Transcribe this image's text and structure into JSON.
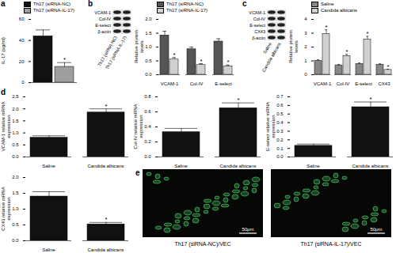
{
  "chart_data": [
    {
      "type": "bar",
      "panel": "a",
      "categories": [
        null
      ],
      "series": [
        {
          "name": "Th17 (siRNA-NC)",
          "color": "#111111",
          "values": [
            44
          ],
          "errors": [
            6
          ],
          "significance": [
            null
          ]
        },
        {
          "name": "Th17 (siRNA-IL-17)",
          "color": "#9e9e9e",
          "values": [
            15
          ],
          "errors": [
            4
          ],
          "significance": [
            "*"
          ]
        }
      ],
      "ylabel": "IL-17 (pg/ml)",
      "ylim": [
        0,
        60
      ],
      "yticks": [
        0,
        20,
        40,
        60
      ],
      "legend": "top-left",
      "tick_labels": "y"
    },
    {
      "type": "bar",
      "panel": "b",
      "categories": [
        "VCAM-1",
        "Col-IV",
        "E-select"
      ],
      "series": [
        {
          "name": "Th17 (siRNA-NC)",
          "color": "#555555",
          "values": [
            1.42,
            0.92,
            1.2
          ],
          "errors": [
            0.15,
            0.08,
            0.1
          ],
          "significance": [
            null,
            null,
            null
          ]
        },
        {
          "name": "Th17 (siRNA-IL-17)",
          "color": "#d0d0d0",
          "values": [
            0.55,
            0.35,
            0.3
          ],
          "errors": [
            0.07,
            0.05,
            0.05
          ],
          "significance": [
            "*",
            "*",
            "*"
          ]
        }
      ],
      "ylabel": "Relative protein levels",
      "ylim": [
        0,
        2
      ],
      "yticks": [
        {
          "value": 0,
          "label": "0.0"
        },
        0.5,
        {
          "value": 1,
          "label": "1.0"
        },
        1.5,
        {
          "value": 2,
          "label": "2.0"
        }
      ],
      "legend": "top-left",
      "blot": {
        "rows": [
          "VCAM-1",
          "Col-IV",
          "E-select",
          "β-actin"
        ],
        "lanes": [
          "Th17 (siRNA-NC)",
          "Th17 (siRNA-IL-17)"
        ]
      }
    },
    {
      "type": "bar",
      "panel": "c",
      "categories": [
        "VCAM-1",
        "Col-IV",
        "E-select",
        "CX43"
      ],
      "series": [
        {
          "name": "Saline",
          "color": "#888888",
          "values": [
            1.0,
            0.68,
            0.78,
            0.72
          ],
          "errors": [
            0.08,
            0.06,
            0.07,
            0.07
          ],
          "significance": [
            null,
            null,
            null,
            null
          ]
        },
        {
          "name": "Candida albicans",
          "color": "#d0d0d0",
          "values": [
            2.95,
            1.35,
            2.55,
            0.35
          ],
          "errors": [
            0.3,
            0.12,
            0.22,
            0.05
          ],
          "significance": [
            "*",
            "*",
            "*",
            "*"
          ]
        }
      ],
      "ylabel": "Relative protein levels",
      "ylim": [
        0,
        4
      ],
      "yticks": [
        0,
        1,
        2,
        3,
        4
      ],
      "legend": "top-left",
      "blot": {
        "rows": [
          "VCAM-1",
          "Col-IV",
          "E-select",
          "CX43",
          "β-actin"
        ],
        "lanes": [
          "Saline",
          "Candida albicans"
        ]
      }
    },
    {
      "type": "bar",
      "panel": "d",
      "categories": [
        "Saline",
        "Candida albicans"
      ],
      "color": "#111111",
      "values": [
        0.8,
        1.85
      ],
      "errors": [
        0.08,
        0.15
      ],
      "significance": [
        null,
        "*"
      ],
      "ylabel": "VCAM-1 relative mRNA expression",
      "ylim": [
        0,
        2.5
      ],
      "yticks": [
        {
          "value": 0,
          "label": "0.0"
        },
        0.5,
        {
          "value": 1,
          "label": "1.0"
        },
        1.5,
        {
          "value": 2,
          "label": "2.0"
        },
        2.5
      ]
    },
    {
      "type": "bar",
      "categories": [
        "Saline",
        "Candida albicans"
      ],
      "color": "#111111",
      "values": [
        0.33,
        0.65
      ],
      "errors": [
        0.05,
        0.07
      ],
      "significance": [
        null,
        "*"
      ],
      "ylabel": "Col-IV relative mRNA expression",
      "ylim": [
        0,
        0.8
      ],
      "yticks": [
        {
          "value": 0,
          "label": "0.0"
        },
        0.2,
        0.4,
        0.6,
        0.8
      ]
    },
    {
      "type": "bar",
      "categories": [
        "Saline",
        "Candida albicans"
      ],
      "color": "#111111",
      "values": [
        0.13,
        0.58
      ],
      "errors": [
        0.02,
        0.06
      ],
      "significance": [
        null,
        "*"
      ],
      "ylabel": "E-select relative mRNA expression",
      "ylim": [
        0,
        0.7
      ],
      "yticks": [
        {
          "value": 0,
          "label": "0.0"
        },
        0.1,
        0.2,
        0.3,
        0.4,
        0.5,
        0.6,
        0.7
      ]
    },
    {
      "type": "bar",
      "categories": [
        "Saline",
        "Candida albicans"
      ],
      "color": "#111111",
      "values": [
        1.4,
        0.52
      ],
      "errors": [
        0.15,
        0.06
      ],
      "significance": [
        null,
        "*"
      ],
      "ylabel": "CX43 relative mRNA expression",
      "ylim": [
        0,
        2
      ],
      "yticks": [
        {
          "value": 0,
          "label": "0.0"
        },
        0.5,
        {
          "value": 1,
          "label": "1.0"
        },
        1.5,
        {
          "value": 2,
          "label": "2.0"
        }
      ]
    },
    {
      "type": "image",
      "panel": "e",
      "images": [
        "Th17 (siRNA-NC)/VEC",
        "Th17 (siRNA-IL-17)/VEC"
      ],
      "scale_bar": "50μm"
    }
  ]
}
